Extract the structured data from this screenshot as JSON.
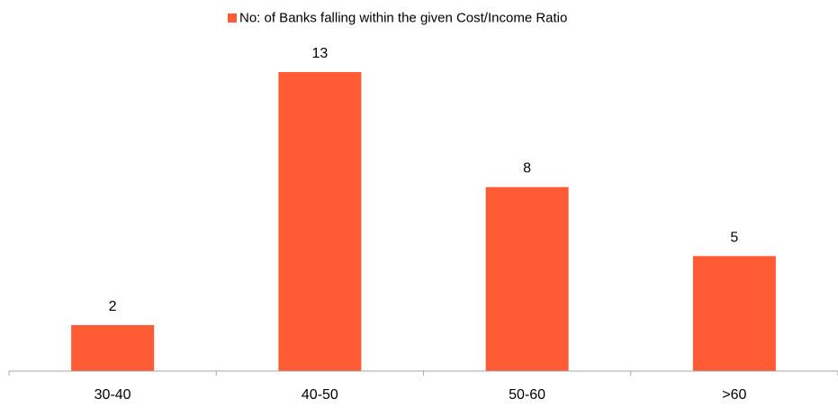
{
  "chart_data": {
    "type": "bar",
    "categories": [
      "30-40",
      "40-50",
      "50-60",
      ">60"
    ],
    "series": [
      {
        "name": "No: of Banks falling within the given Cost/Income Ratio",
        "values": [
          2,
          13,
          8,
          5
        ],
        "color": "#FF5B35"
      }
    ],
    "data_labels": [
      "2",
      "13",
      "8",
      "5"
    ],
    "ylim": [
      0,
      13
    ],
    "grid": false,
    "legend_position": "top-center",
    "axis_color": "#A6A6A6"
  }
}
